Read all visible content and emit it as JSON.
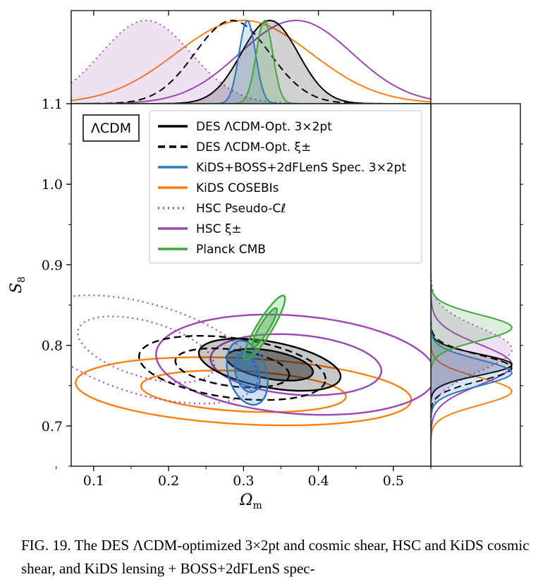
{
  "chart_data": {
    "type": "contour",
    "model_label": "ΛCDM",
    "xlabel": "Ω",
    "xlabel_sub": "m",
    "ylabel": "S",
    "ylabel_sub": "8",
    "xlim": [
      0.07,
      0.55
    ],
    "ylim": [
      0.65,
      1.1
    ],
    "x_ticks": [
      0.1,
      0.2,
      0.3,
      0.4,
      0.5
    ],
    "x_tick_labels": [
      "0.1",
      "0.2",
      "0.3",
      "0.4",
      "0.5"
    ],
    "y_ticks": [
      0.7,
      0.8,
      0.9,
      1.0,
      1.1
    ],
    "y_tick_labels": [
      "0.7",
      "0.8",
      "0.9",
      "1.0",
      "1.1"
    ],
    "legend_position": "top-right",
    "series": [
      {
        "name": "DES ΛCDM-Opt. 3×2pt",
        "color": "#000000",
        "style": "solid",
        "filled": true,
        "center": [
          0.335,
          0.776
        ],
        "sigma": [
          0.038,
          0.013
        ],
        "rho": -0.45
      },
      {
        "name": "DES ΛCDM-Opt. ξ±",
        "color": "#000000",
        "style": "dashed",
        "filled": false,
        "center": [
          0.285,
          0.772
        ],
        "sigma": [
          0.05,
          0.016
        ],
        "rho": -0.35
      },
      {
        "name": "KiDS+BOSS+2dFLenS Spec. 3×2pt",
        "color": "#2a77c0",
        "style": "solid",
        "filled": true,
        "center": [
          0.305,
          0.766
        ],
        "sigma": [
          0.011,
          0.016
        ],
        "rho": -0.3
      },
      {
        "name": "KiDS COSEBIs",
        "color": "#ff7f0e",
        "style": "solid",
        "filled": false,
        "center": [
          0.3,
          0.743
        ],
        "sigma": [
          0.09,
          0.017
        ],
        "rho": -0.25
      },
      {
        "name": "HSC Pseudo-Cℓ",
        "color": "#a552b8",
        "style": "dotted",
        "filled": false,
        "center": [
          0.17,
          0.795
        ],
        "sigma": [
          0.06,
          0.027
        ],
        "rho": -0.5
      },
      {
        "name": "HSC ξ±",
        "color": "#9b46b3",
        "style": "solid",
        "filled": false,
        "center": [
          0.37,
          0.776
        ],
        "sigma": [
          0.075,
          0.025
        ],
        "rho": -0.2
      },
      {
        "name": "Planck CMB",
        "color": "#3fa83f",
        "style": "solid",
        "filled": true,
        "center": [
          0.328,
          0.822
        ],
        "sigma": [
          0.011,
          0.016
        ],
        "rho": 0.9
      }
    ]
  },
  "caption": {
    "text": "FIG. 19. The DES ΛCDM-optimized 3×2pt and cosmic shear, HSC and KiDS cosmic shear, and KiDS lensing + BOSS+2dFLenS spec-"
  }
}
